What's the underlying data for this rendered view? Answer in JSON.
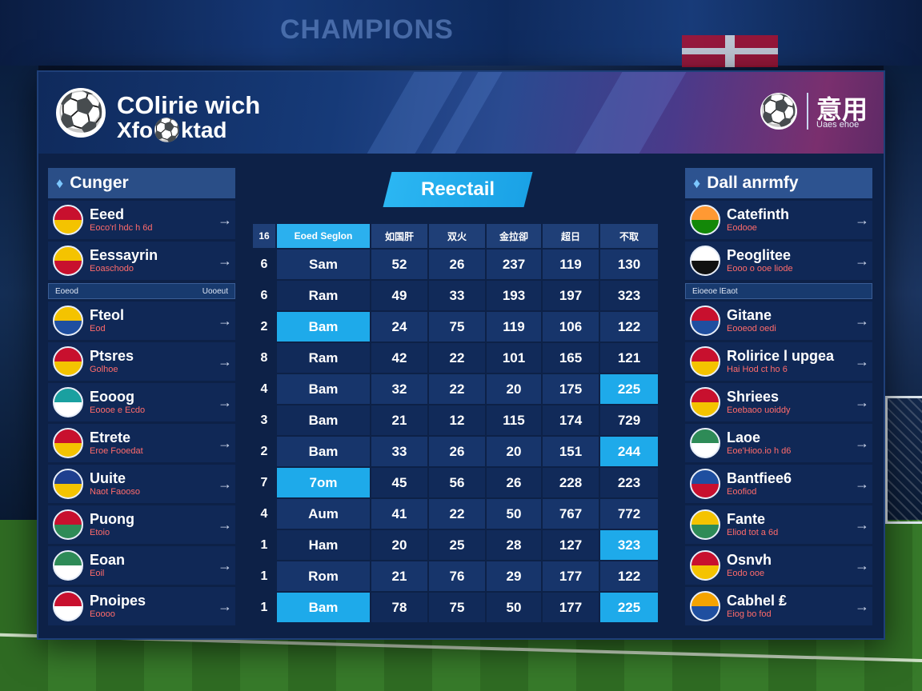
{
  "background": {
    "banner_text": "CHAMPIONS"
  },
  "header": {
    "brand_line1": "COlirie wich",
    "brand_line2": "Xfo⚽ktad",
    "right_title": "意用",
    "right_subtitle": "Uaes ehoe"
  },
  "left_panel": {
    "title": "Cunger",
    "items": [
      {
        "name": "Eeed",
        "sub": "Eoco'rl hdc h 6d",
        "flag_colors": [
          "#c8102e",
          "#f4c300"
        ]
      },
      {
        "name": "Eessayrin",
        "sub": "Eoaschodo",
        "flag_colors": [
          "#f4c300",
          "#c8102e"
        ]
      },
      {
        "name": "Fteol",
        "sub": "Eod",
        "flag_colors": [
          "#f4c300",
          "#1f4fa0"
        ]
      },
      {
        "name": "Ptsres",
        "sub": "Golhoe",
        "flag_colors": [
          "#c8102e",
          "#f4c300"
        ]
      },
      {
        "name": "Eooog",
        "sub": "Eoooe e Ecdo",
        "flag_colors": [
          "#1aa0a0",
          "#ffffff"
        ]
      },
      {
        "name": "Etrete",
        "sub": "Eroe Fooedat",
        "flag_colors": [
          "#c8102e",
          "#f4c300"
        ]
      },
      {
        "name": "Uuite",
        "sub": "Naot Faooso",
        "flag_colors": [
          "#1f3f8f",
          "#f4c300"
        ]
      },
      {
        "name": "Puong",
        "sub": "Etoio",
        "flag_colors": [
          "#c8102e",
          "#2e8b57"
        ]
      },
      {
        "name": "Eoan",
        "sub": "Eoil",
        "flag_colors": [
          "#2e8b57",
          "#ffffff"
        ]
      },
      {
        "name": "Pnoipes",
        "sub": "Eoooo",
        "flag_colors": [
          "#c8102e",
          "#ffffff"
        ]
      }
    ],
    "separator": {
      "left": "Eoeod",
      "right": "Uooeut"
    }
  },
  "center": {
    "ribbon_label": "Reectail",
    "columns": [
      "16",
      "Eoed Seglon",
      "如国肝",
      "双火",
      "金拉卻",
      "超日",
      "不取"
    ],
    "rows": [
      {
        "rank": "6",
        "team": "Sam",
        "v": [
          "52",
          "26",
          "237",
          "119",
          "130"
        ],
        "hl": []
      },
      {
        "rank": "6",
        "team": "Ram",
        "v": [
          "49",
          "33",
          "193",
          "197",
          "323"
        ],
        "hl": []
      },
      {
        "rank": "2",
        "team": "Bam",
        "v": [
          "24",
          "75",
          "119",
          "106",
          "122"
        ],
        "hl": [
          "team"
        ]
      },
      {
        "rank": "8",
        "team": "Ram",
        "v": [
          "42",
          "22",
          "101",
          "165",
          "121"
        ],
        "hl": []
      },
      {
        "rank": "4",
        "team": "Bam",
        "v": [
          "32",
          "22",
          "20",
          "175",
          "225"
        ],
        "hl": [
          "c5"
        ]
      },
      {
        "rank": "3",
        "team": "Bam",
        "v": [
          "21",
          "12",
          "115",
          "174",
          "729"
        ],
        "hl": []
      },
      {
        "rank": "2",
        "team": "Bam",
        "v": [
          "33",
          "26",
          "20",
          "151",
          "244"
        ],
        "hl": [
          "c5"
        ]
      },
      {
        "rank": "7",
        "team": "7om",
        "v": [
          "45",
          "56",
          "26",
          "228",
          "223"
        ],
        "hl": [
          "team"
        ]
      },
      {
        "rank": "4",
        "team": "Aum",
        "v": [
          "41",
          "22",
          "50",
          "767",
          "772"
        ],
        "hl": []
      },
      {
        "rank": "1",
        "team": "Ham",
        "v": [
          "20",
          "25",
          "28",
          "127",
          "323"
        ],
        "hl": [
          "c5"
        ]
      },
      {
        "rank": "1",
        "team": "Rom",
        "v": [
          "21",
          "76",
          "29",
          "177",
          "122"
        ],
        "hl": []
      },
      {
        "rank": "1",
        "team": "Bam",
        "v": [
          "78",
          "75",
          "50",
          "177",
          "225"
        ],
        "hl": [
          "team",
          "c5"
        ]
      }
    ]
  },
  "right_panel": {
    "title": "Dall anrmfy",
    "items": [
      {
        "name": "Catefinth",
        "sub": "Eodooe",
        "flag_colors": [
          "#ff9933",
          "#138808"
        ]
      },
      {
        "name": "Peoglitee",
        "sub": "Eooo o ooe liode",
        "flag_colors": [
          "#ffffff",
          "#111111"
        ]
      },
      {
        "name": "Gitane",
        "sub": "Eooeod oedi",
        "flag_colors": [
          "#c8102e",
          "#1f4fa0"
        ]
      },
      {
        "name": "Rolirice l upgea",
        "sub": "Hai Hod ct ho 6",
        "flag_colors": [
          "#c8102e",
          "#f4c300"
        ]
      },
      {
        "name": "Shriees",
        "sub": "Eoebaoo uoiddy",
        "flag_colors": [
          "#c8102e",
          "#f4c300"
        ]
      },
      {
        "name": "Laoe",
        "sub": "Eoe'Hioo.io h d6",
        "flag_colors": [
          "#2e8b57",
          "#ffffff"
        ]
      },
      {
        "name": "Bantfiee6",
        "sub": "Eoofiod",
        "flag_colors": [
          "#1f4fa0",
          "#c8102e"
        ]
      },
      {
        "name": "Fante",
        "sub": "Eliod tot a 6d",
        "flag_colors": [
          "#f4c300",
          "#2e8b57"
        ]
      },
      {
        "name": "Osnvh",
        "sub": "Eodo ooe",
        "flag_colors": [
          "#c8102e",
          "#f4c300"
        ]
      },
      {
        "name": "Cabhel ₤",
        "sub": "Eiog bo fod",
        "flag_colors": [
          "#f4a300",
          "#1f4fa0"
        ]
      }
    ],
    "separator": {
      "left": "Eioeoe lEaot",
      "right": ""
    }
  },
  "icons": {
    "arrow": "→",
    "ball": "⚽",
    "sep_chevron": "›"
  }
}
